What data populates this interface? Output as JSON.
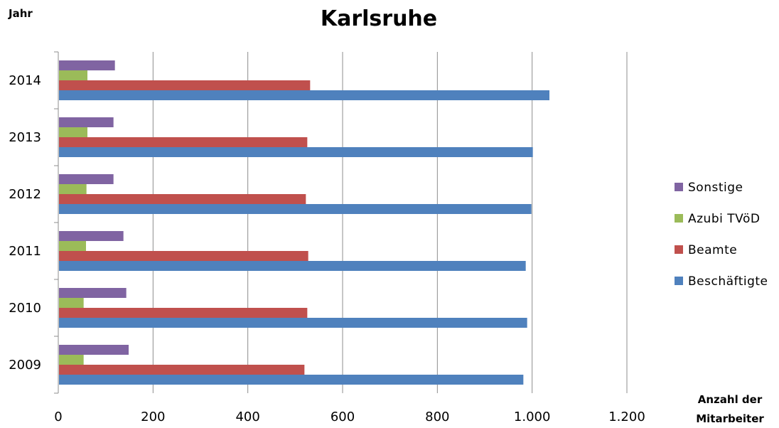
{
  "chart_data": {
    "type": "bar",
    "orientation": "horizontal",
    "title": "Karlsruhe",
    "ylabel": "Jahr",
    "xlabel": "Anzahl der Mitarbeiter",
    "xlabel_lines": [
      "Anzahl der",
      "Mitarbeiter"
    ],
    "categories": [
      "2009",
      "2010",
      "2011",
      "2012",
      "2013",
      "2014"
    ],
    "xlim": [
      0,
      1200
    ],
    "x_ticks": [
      0,
      200,
      400,
      600,
      800,
      1000,
      1200
    ],
    "x_tick_labels": [
      "0",
      "200",
      "400",
      "600",
      "800",
      "1.000",
      "1.200"
    ],
    "grid": "vertical",
    "legend_position": "right",
    "series": [
      {
        "name": "Beschäftigte",
        "color": "#4f81bd",
        "values": [
          980,
          988,
          985,
          997,
          1000,
          1035
        ]
      },
      {
        "name": "Beamte",
        "color": "#c0504d",
        "values": [
          518,
          524,
          526,
          521,
          524,
          530
        ]
      },
      {
        "name": "Azubi TVöD",
        "color": "#9bbb59",
        "values": [
          52,
          52,
          57,
          58,
          60,
          60
        ]
      },
      {
        "name": "Sonstige",
        "color": "#8064a2",
        "values": [
          147,
          142,
          136,
          115,
          115,
          118
        ]
      }
    ],
    "legend_order": [
      3,
      2,
      1,
      0
    ]
  }
}
